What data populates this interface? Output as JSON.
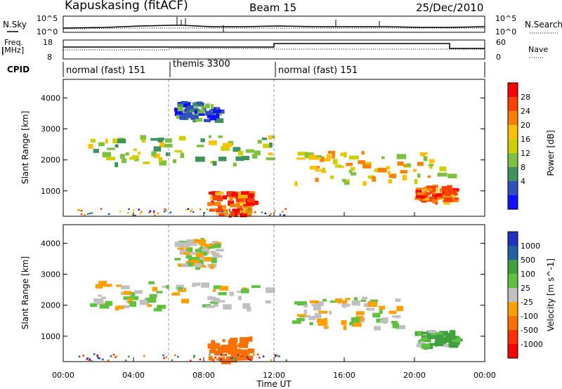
{
  "header": {
    "title": "Kapuskasing (fitACF)",
    "beam": "Beam 15",
    "date": "25/Dec/2010"
  },
  "noise_panel": {
    "left_label": "N.Sky",
    "right_label": "N.Search",
    "left_ticks": [
      "10^5",
      "10^0"
    ],
    "right_ticks": [
      "10^5",
      "10^0"
    ]
  },
  "freq_panel": {
    "left_label_1": "Freq.",
    "left_label_2": "[MHz]",
    "right_label": "Nave",
    "left_ticks": [
      "18",
      "8"
    ],
    "right_ticks": [
      "60",
      "0"
    ]
  },
  "cpid_panel": {
    "label": "CPID",
    "segments": [
      {
        "name": "normal (fast) 151",
        "start_ut": 0,
        "end_ut": 6
      },
      {
        "name": "themis 3300",
        "start_ut": 6,
        "end_ut": 12
      },
      {
        "name": "normal (fast) 151",
        "start_ut": 12,
        "end_ut": 24
      }
    ]
  },
  "power_colorbar": {
    "label": "Power [dB]",
    "ticks": [
      "28",
      "24",
      "20",
      "16",
      "12",
      "8",
      "4"
    ],
    "colors": [
      "#ff0000",
      "#ff4000",
      "#ff8000",
      "#ffc000",
      "#d0d000",
      "#80c040",
      "#409060",
      "#3050c0",
      "#1010ff"
    ]
  },
  "velocity_colorbar": {
    "label": "Velocity [m s^-1]",
    "ticks": [
      "1000",
      "500",
      "100",
      "25",
      "-25",
      "-100",
      "-500",
      "-1000"
    ],
    "colors": [
      "#2030c0",
      "#2060a0",
      "#40a040",
      "#60c040",
      "#c0c0c0",
      "#ffa000",
      "#ff7000",
      "#ff3000",
      "#ff0000"
    ]
  },
  "axes": {
    "ylabel": "Slant Range [km]",
    "xlabel": "Time UT",
    "yticks": [
      "4000",
      "3000",
      "2000",
      "1000"
    ],
    "xticks": [
      "00:00",
      "04:00",
      "08:00",
      "12:00",
      "16:00",
      "20:00",
      "00:00"
    ]
  },
  "chart_data": [
    {
      "type": "heatmap",
      "title": "",
      "quantity": "Power [dB]",
      "xlabel": "",
      "ylabel": "Slant Range [km]",
      "xlim_ut_hours": [
        0,
        24
      ],
      "ylim_km": [
        180,
        4600
      ],
      "color_range": [
        0,
        32
      ],
      "echo_regions": [
        {
          "ut_start": 6.3,
          "ut_end": 8.7,
          "range_start_km": 3300,
          "range_end_km": 3900,
          "power_db": 6
        },
        {
          "ut_start": 1.4,
          "ut_end": 11.9,
          "range_start_km": 1900,
          "range_end_km": 2800,
          "power_db": 13
        },
        {
          "ut_start": 8.2,
          "ut_end": 10.6,
          "range_start_km": 250,
          "range_end_km": 1000,
          "power_db": 27
        },
        {
          "ut_start": 13.0,
          "ut_end": 22.0,
          "range_start_km": 1300,
          "range_end_km": 2300,
          "power_db": 18
        },
        {
          "ut_start": 20.0,
          "ut_end": 22.2,
          "range_start_km": 700,
          "range_end_km": 1200,
          "power_db": 26
        }
      ]
    },
    {
      "type": "heatmap",
      "title": "",
      "quantity": "Velocity [m s^-1]",
      "xlabel": "Time UT",
      "ylabel": "Slant Range [km]",
      "xlim_ut_hours": [
        0,
        24
      ],
      "ylim_km": [
        180,
        4600
      ],
      "color_range": [
        -1000,
        1000
      ],
      "echo_regions": [
        {
          "ut_start": 6.3,
          "ut_end": 8.7,
          "range_start_km": 3300,
          "range_end_km": 4200,
          "velocity_ms": 0
        },
        {
          "ut_start": 1.4,
          "ut_end": 11.9,
          "range_start_km": 1900,
          "range_end_km": 2800,
          "velocity_ms": 0
        },
        {
          "ut_start": 8.2,
          "ut_end": 10.6,
          "range_start_km": 250,
          "range_end_km": 1000,
          "velocity_ms": -150
        },
        {
          "ut_start": 13.0,
          "ut_end": 19.0,
          "range_start_km": 1300,
          "range_end_km": 2300,
          "velocity_ms": 0
        },
        {
          "ut_start": 20.0,
          "ut_end": 22.2,
          "range_start_km": 700,
          "range_end_km": 1200,
          "velocity_ms": 80
        }
      ]
    }
  ]
}
